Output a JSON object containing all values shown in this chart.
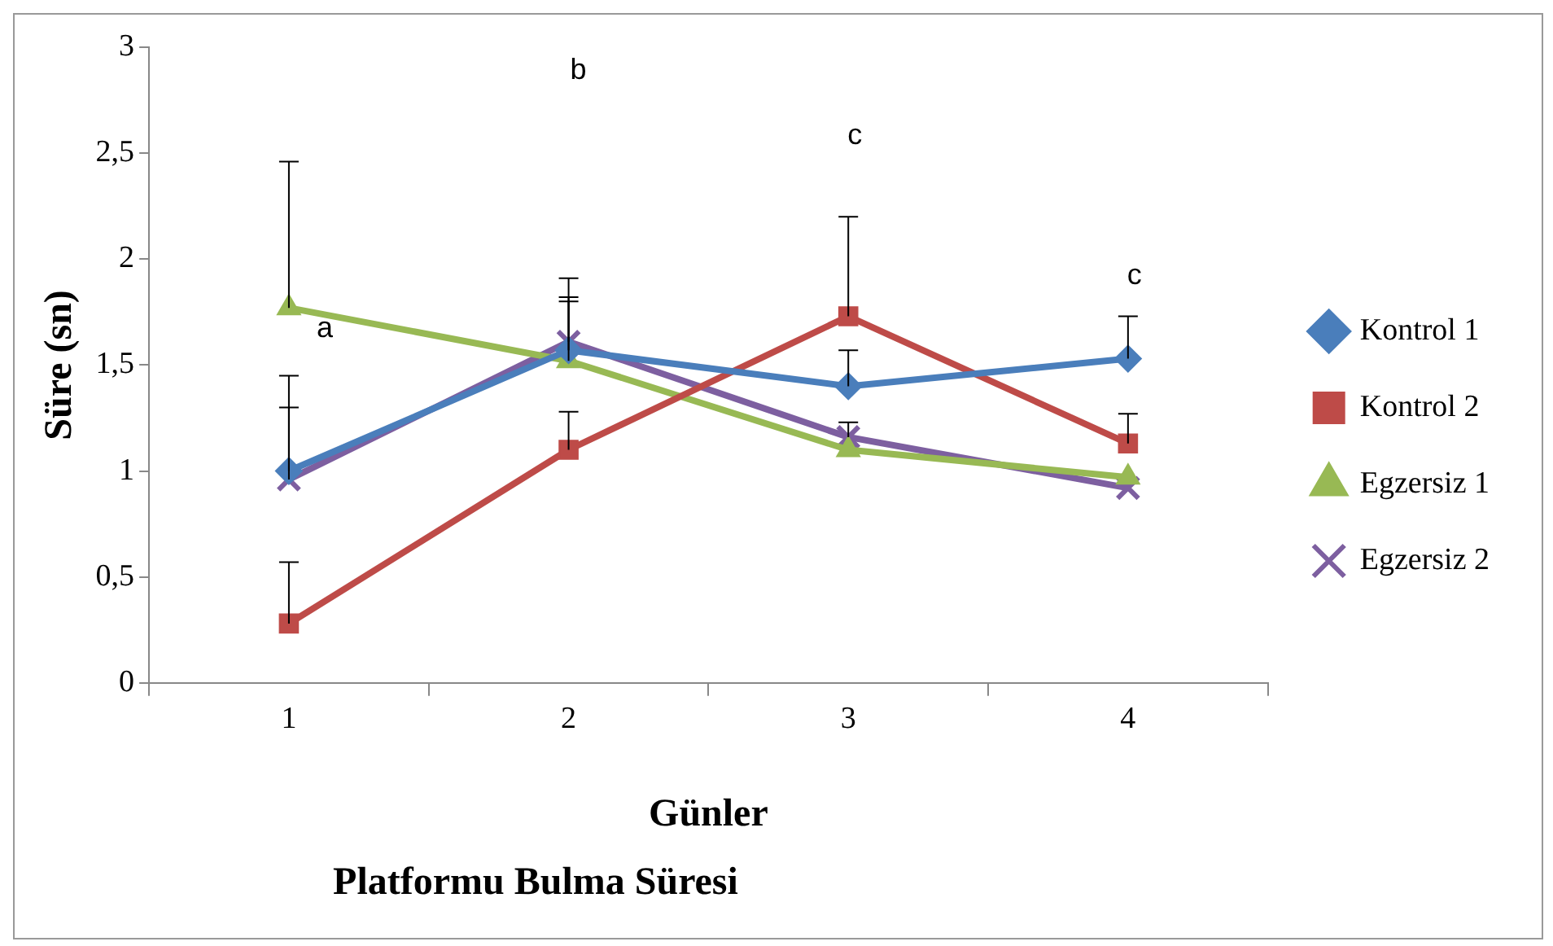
{
  "chart_data": {
    "type": "line",
    "xlabel": "Günler",
    "ylabel": "Süre (sn)",
    "categories": [
      "1",
      "2",
      "3",
      "4"
    ],
    "series": [
      {
        "name": "Kontrol 1",
        "color": "#4a7ebb",
        "marker": "diamond",
        "values": [
          1.0,
          1.57,
          1.4,
          1.53
        ],
        "errors": [
          [
            1.0,
            1.45
          ],
          [
            1.57,
            1.82
          ],
          [
            1.4,
            1.57
          ],
          [
            1.53,
            1.73
          ]
        ]
      },
      {
        "name": "Kontrol 2",
        "color": "#be4b48",
        "marker": "square",
        "values": [
          0.28,
          1.1,
          1.73,
          1.13
        ],
        "errors": [
          [
            0.28,
            0.57
          ],
          [
            1.1,
            1.28
          ],
          [
            1.73,
            2.2
          ],
          [
            1.13,
            1.27
          ]
        ]
      },
      {
        "name": "Egzersiz 1",
        "color": "#98b954",
        "marker": "triangle",
        "values": [
          1.77,
          1.52,
          1.1,
          0.97
        ],
        "errors": [
          [
            1.77,
            2.46
          ],
          [
            1.52,
            1.8
          ],
          null,
          null
        ]
      },
      {
        "name": "Egzersiz 2",
        "color": "#7d5fa0",
        "marker": "cross",
        "values": [
          0.96,
          1.61,
          1.16,
          0.92
        ],
        "errors": [
          [
            0.96,
            1.3
          ],
          [
            1.61,
            1.91
          ],
          [
            1.16,
            1.23
          ],
          null
        ]
      }
    ],
    "ylim": [
      0,
      3
    ],
    "yticks": [
      0,
      {
        "value": 0.5,
        "label": "0,5"
      },
      1,
      {
        "value": 1.5,
        "label": "1,5"
      },
      2,
      {
        "value": 2.5,
        "label": "2,5"
      },
      3
    ],
    "grid": false,
    "legend": "right",
    "line_style": "solid",
    "annotations": [
      "a",
      "b",
      "c",
      "c",
      "Platformu Bulma Süresi"
    ]
  }
}
